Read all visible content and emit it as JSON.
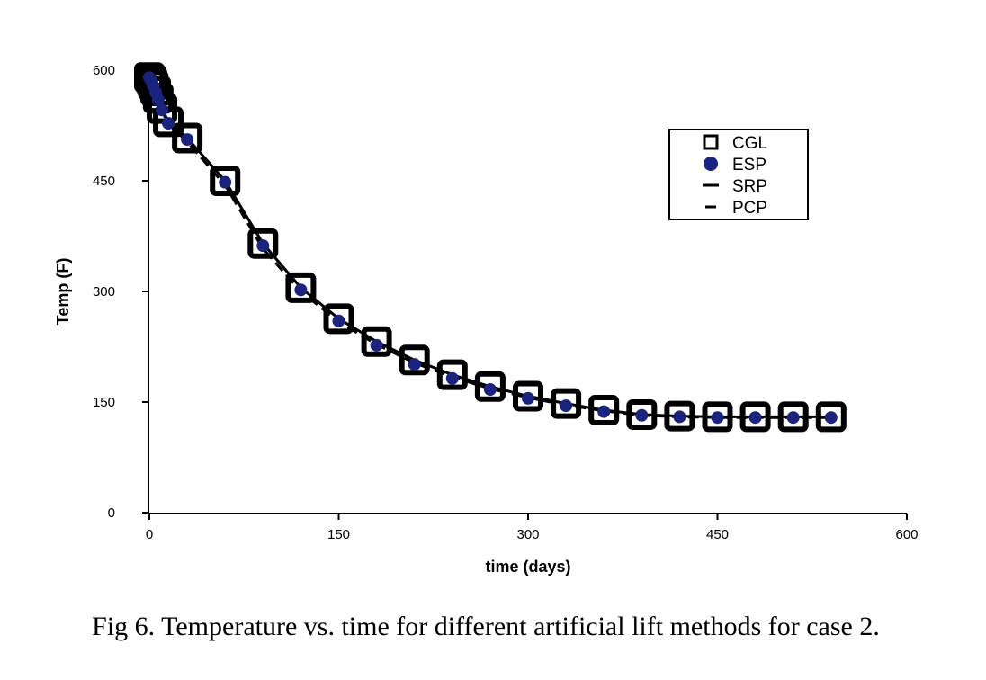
{
  "caption": "Fig 6. Temperature vs. time for different artificial lift methods for case 2.",
  "chart_data": {
    "type": "line",
    "title": "",
    "xlabel": "time (days)",
    "ylabel": "Temp (F)",
    "xlim": [
      0,
      600
    ],
    "ylim": [
      0,
      600
    ],
    "xticks": [
      0,
      150,
      300,
      450,
      600
    ],
    "yticks": [
      0,
      150,
      300,
      450,
      600
    ],
    "grid": false,
    "legend_position": "top-right",
    "colors": {
      "CGL": "#000000",
      "ESP": "#1a237e",
      "SRP": "#000000",
      "PCP": "#000000"
    },
    "x": [
      0,
      1,
      2,
      3,
      5,
      7,
      10,
      15,
      30,
      60,
      90,
      120,
      150,
      180,
      210,
      240,
      270,
      300,
      330,
      360,
      390,
      420,
      450,
      480,
      510,
      540
    ],
    "series": [
      {
        "name": "CGL",
        "marker": "open-square",
        "line": "none",
        "values": [
          590,
          588,
          585,
          580,
          572,
          562,
          548,
          530,
          508,
          450,
          365,
          305,
          263,
          232,
          207,
          187,
          171,
          158,
          148,
          139,
          133,
          131,
          130,
          130,
          130,
          130
        ]
      },
      {
        "name": "ESP",
        "marker": "filled-circle",
        "line": "none",
        "values": [
          590,
          588,
          584,
          579,
          570,
          560,
          546,
          528,
          506,
          448,
          362,
          302,
          260,
          227,
          201,
          182,
          167,
          155,
          145,
          137,
          132,
          130,
          129,
          129,
          129,
          129
        ]
      },
      {
        "name": "SRP",
        "marker": "none",
        "line": "solid",
        "values": [
          590,
          588,
          585,
          580,
          572,
          562,
          548,
          530,
          508,
          450,
          365,
          305,
          263,
          232,
          207,
          187,
          171,
          158,
          148,
          139,
          133,
          131,
          130,
          130,
          130,
          130
        ]
      },
      {
        "name": "PCP",
        "marker": "none",
        "line": "dashed",
        "values": [
          590,
          587,
          584,
          578,
          569,
          559,
          545,
          527,
          503,
          444,
          358,
          300,
          259,
          228,
          203,
          184,
          168,
          156,
          146,
          138,
          132,
          130,
          129,
          129,
          129,
          129
        ]
      }
    ]
  }
}
